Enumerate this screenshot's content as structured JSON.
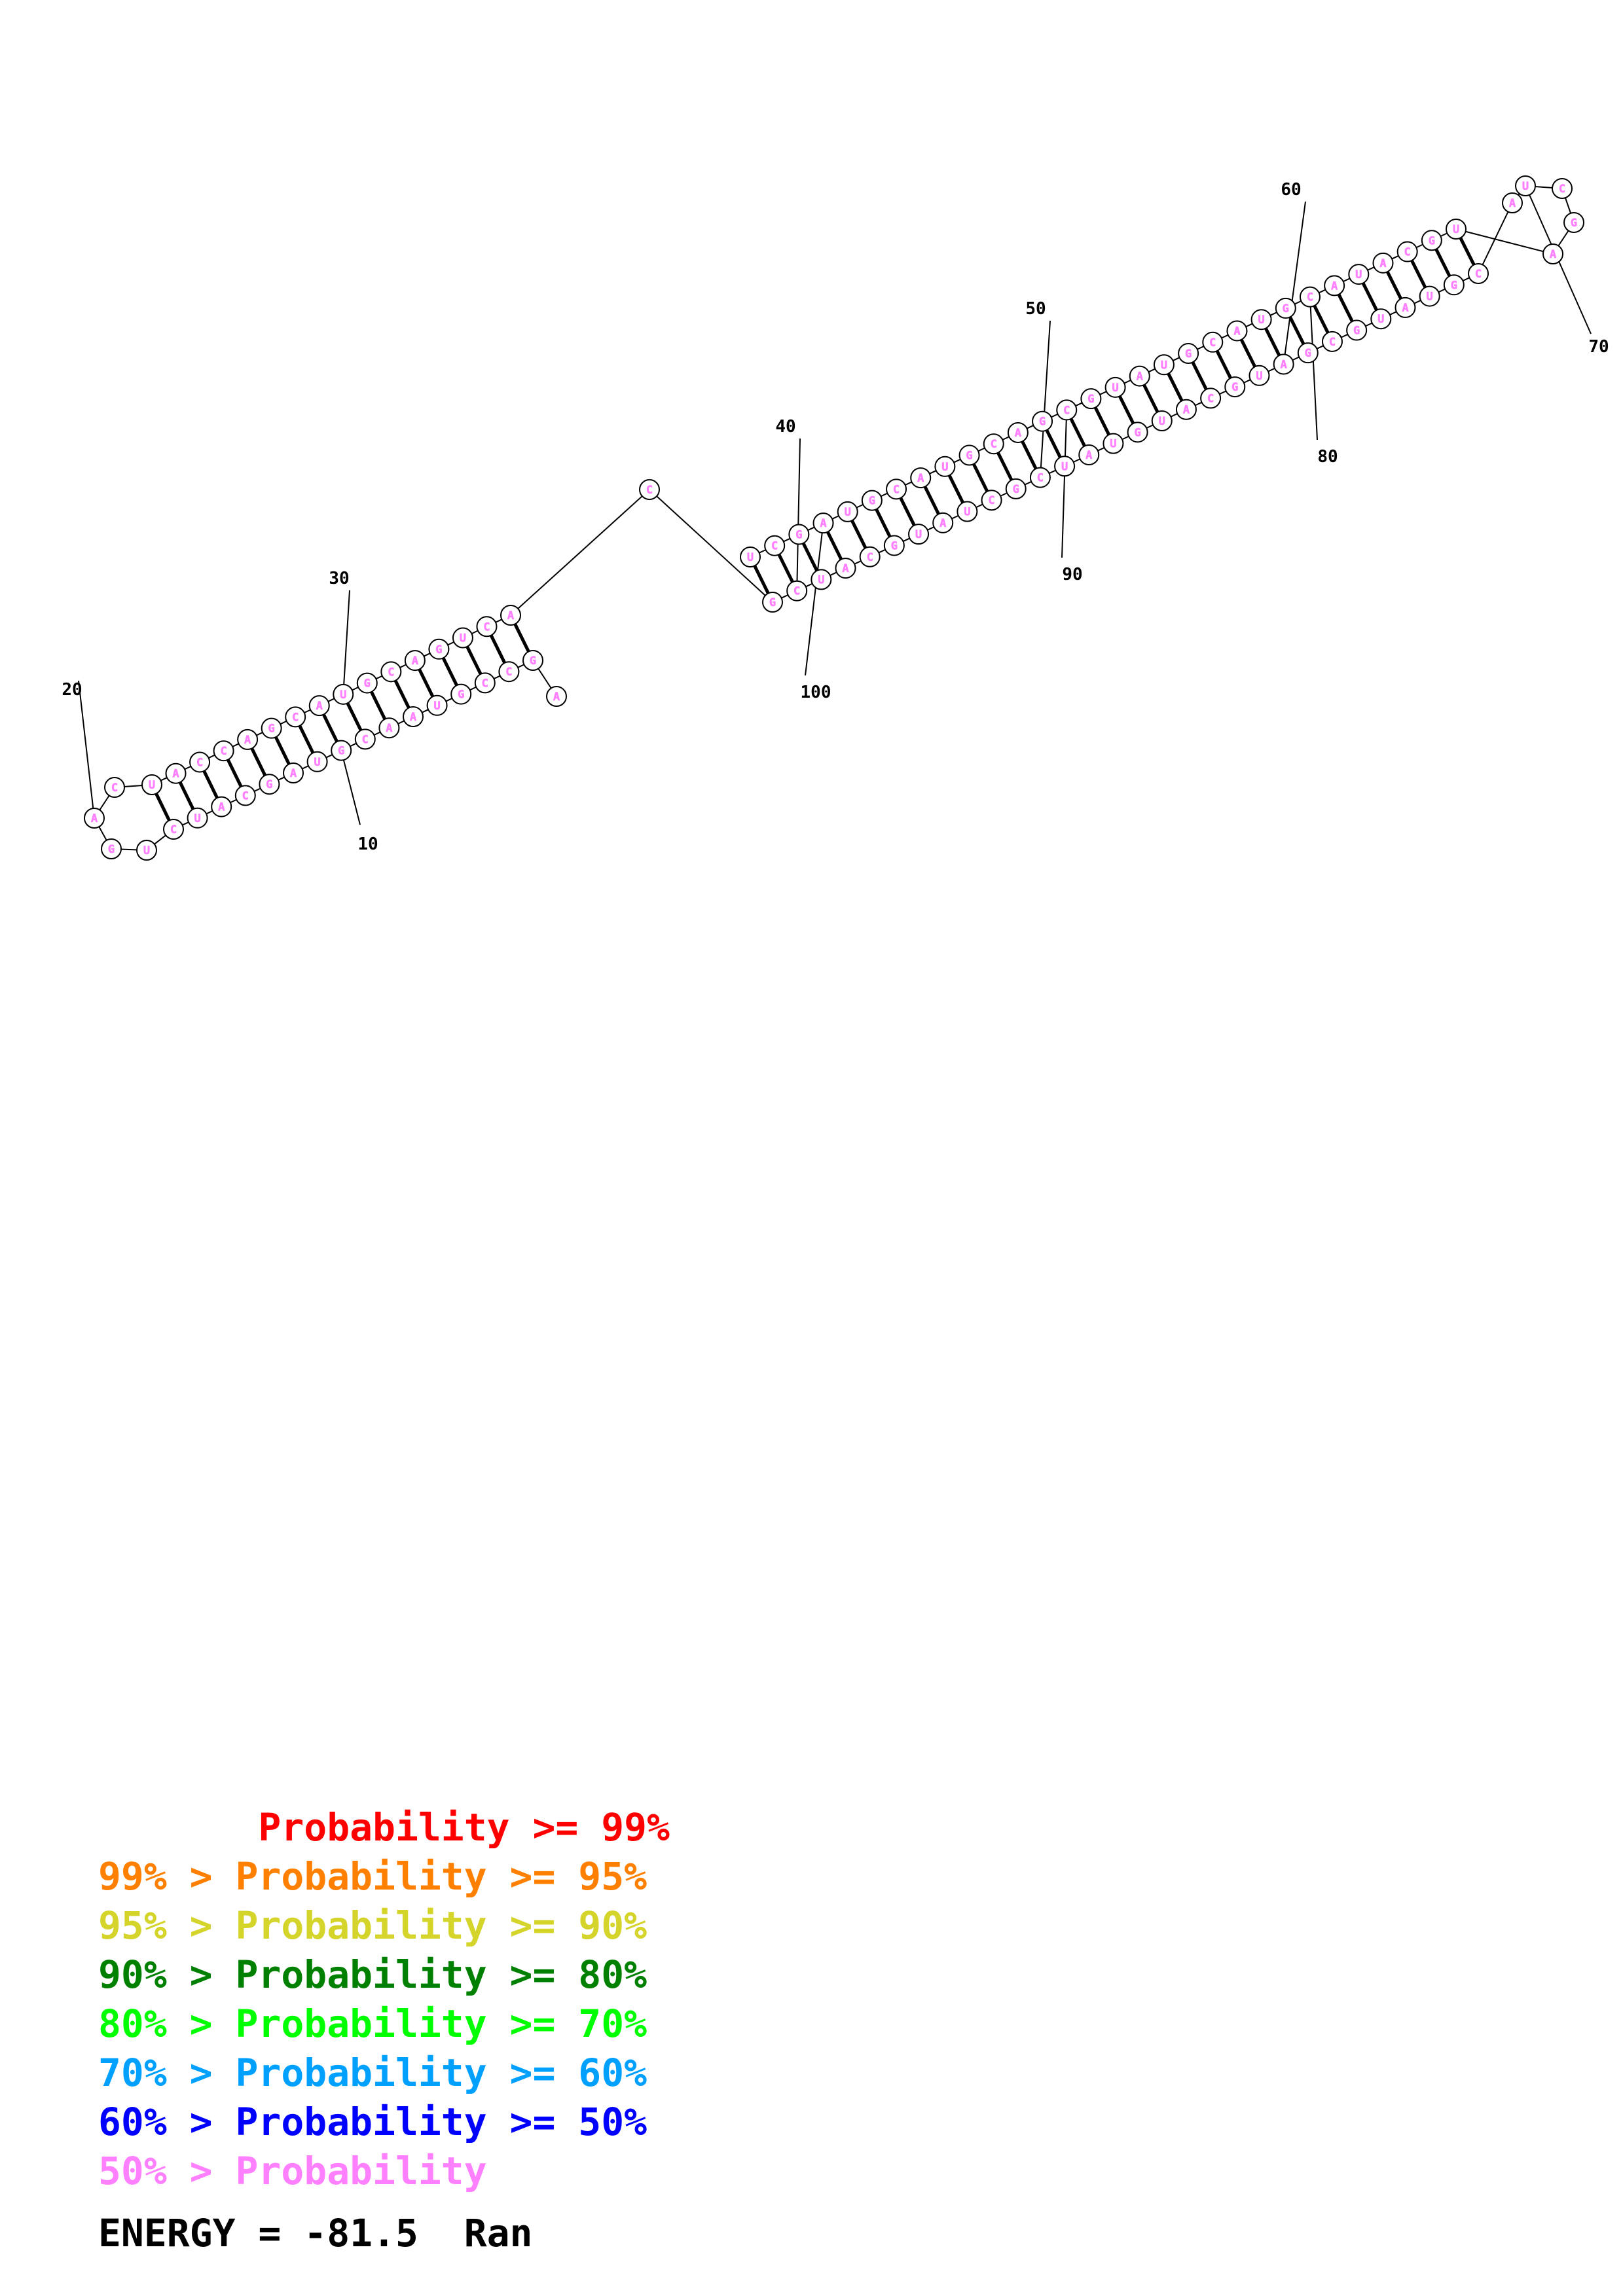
{
  "structure": {
    "sequence": "AGCCGUAACGUAGCAUCUGACUACCAGCAUGCAGUCACGCUACGUAUCGCUAUGUACGUAGCGUAUGCAUCGAUGCAUACGUACGUAUGCGACGUACGUAGCU",
    "pairs": [
      [
        2,
        37
      ],
      [
        3,
        36
      ],
      [
        4,
        35
      ],
      [
        5,
        34
      ],
      [
        6,
        33
      ],
      [
        7,
        32
      ],
      [
        8,
        31
      ],
      [
        9,
        30
      ],
      [
        10,
        29
      ],
      [
        11,
        28
      ],
      [
        12,
        27
      ],
      [
        13,
        26
      ],
      [
        14,
        25
      ],
      [
        15,
        24
      ],
      [
        16,
        23
      ],
      [
        17,
        22
      ],
      [
        39,
        103
      ],
      [
        40,
        102
      ],
      [
        41,
        101
      ],
      [
        42,
        100
      ],
      [
        43,
        99
      ],
      [
        44,
        98
      ],
      [
        45,
        97
      ],
      [
        46,
        96
      ],
      [
        47,
        95
      ],
      [
        48,
        94
      ],
      [
        49,
        93
      ],
      [
        50,
        92
      ],
      [
        51,
        91
      ],
      [
        52,
        90
      ],
      [
        53,
        89
      ],
      [
        54,
        88
      ],
      [
        55,
        87
      ],
      [
        56,
        86
      ],
      [
        57,
        85
      ],
      [
        58,
        84
      ],
      [
        59,
        83
      ],
      [
        60,
        82
      ],
      [
        61,
        81
      ],
      [
        62,
        80
      ],
      [
        63,
        79
      ],
      [
        64,
        78
      ],
      [
        65,
        77
      ],
      [
        66,
        76
      ],
      [
        67,
        75
      ],
      [
        68,
        74
      ]
    ],
    "index_labels": [
      "10",
      "20",
      "30",
      "40",
      "50",
      "60",
      "70",
      "80",
      "90",
      "100"
    ],
    "base_color": "#ff80ff"
  },
  "legend": [
    {
      "label": "       Probability >= 99%",
      "color": "#ff0000"
    },
    {
      "label": "99% > Probability >= 95%",
      "color": "#ff8000"
    },
    {
      "label": "95% > Probability >= 90%",
      "color": "#d4d42a"
    },
    {
      "label": "90% > Probability >= 80%",
      "color": "#008000"
    },
    {
      "label": "80% > Probability >= 70%",
      "color": "#00ff00"
    },
    {
      "label": "70% > Probability >= 60%",
      "color": "#00a0ff"
    },
    {
      "label": "60% > Probability >= 50%",
      "color": "#0000ff"
    },
    {
      "label": "50% > Probability",
      "color": "#ff80ff"
    }
  ],
  "energy": "ENERGY = -81.5  Ran"
}
